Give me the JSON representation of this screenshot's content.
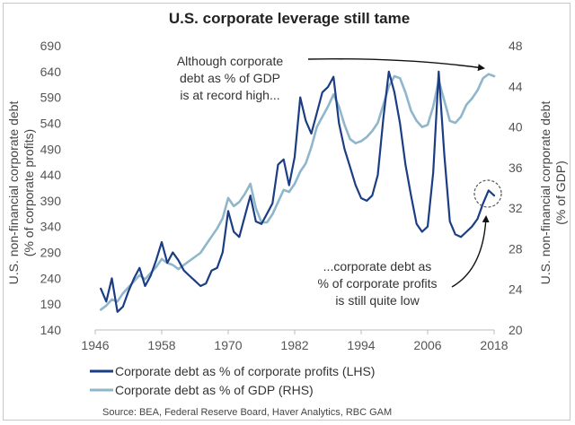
{
  "chart_data": {
    "type": "line",
    "title": "U.S. corporate leverage still tame",
    "ylabel_left": "U.S. non-financial corporate debt (% of corporate profits)",
    "ylabel_left_lines": [
      "U.S. non-financial corporate debt",
      "(% of corporate profits)"
    ],
    "ylabel_right": "U.S. non-financial corporate debt (% of GDP)",
    "ylabel_right_lines": [
      "U.S. non-financial corporate debt",
      "(% of GDP)"
    ],
    "x_ticks": [
      "1946",
      "1958",
      "1970",
      "1982",
      "1994",
      "2006",
      "2018"
    ],
    "x_range": [
      1946,
      2018
    ],
    "y_left_ticks": [
      "140",
      "190",
      "240",
      "290",
      "340",
      "390",
      "440",
      "490",
      "540",
      "590",
      "640",
      "690"
    ],
    "y_left_range": [
      140,
      690
    ],
    "y_right_ticks": [
      "20",
      "24",
      "28",
      "32",
      "36",
      "40",
      "44",
      "48"
    ],
    "y_right_range": [
      20,
      48
    ],
    "grid": false,
    "legend_position": "bottom",
    "series": [
      {
        "name": "Corporate debt as % of corporate profits (LHS)",
        "axis": "left",
        "color": "#1b3d84",
        "x": [
          1947,
          1948,
          1949,
          1950,
          1951,
          1952,
          1953,
          1954,
          1955,
          1956,
          1957,
          1958,
          1959,
          1960,
          1961,
          1962,
          1963,
          1964,
          1965,
          1966,
          1967,
          1968,
          1969,
          1970,
          1971,
          1972,
          1973,
          1974,
          1975,
          1976,
          1977,
          1978,
          1979,
          1980,
          1981,
          1982,
          1983,
          1984,
          1985,
          1986,
          1987,
          1988,
          1989,
          1990,
          1991,
          1992,
          1993,
          1994,
          1995,
          1996,
          1997,
          1998,
          1999,
          2000,
          2001,
          2002,
          2003,
          2004,
          2005,
          2006,
          2007,
          2008,
          2009,
          2010,
          2011,
          2012,
          2013,
          2014,
          2015,
          2016,
          2017,
          2018
        ],
        "values": [
          220,
          195,
          240,
          175,
          185,
          215,
          240,
          260,
          225,
          245,
          275,
          310,
          270,
          290,
          275,
          255,
          245,
          235,
          225,
          230,
          255,
          260,
          290,
          370,
          330,
          320,
          360,
          400,
          350,
          345,
          365,
          385,
          460,
          470,
          420,
          475,
          590,
          545,
          520,
          560,
          600,
          610,
          630,
          540,
          490,
          455,
          420,
          395,
          390,
          400,
          440,
          550,
          640,
          600,
          540,
          460,
          400,
          345,
          330,
          340,
          445,
          640,
          480,
          350,
          325,
          320,
          330,
          340,
          355,
          385,
          410,
          400
        ]
      },
      {
        "name": "Corporate debt as % of GDP (RHS)",
        "axis": "right",
        "color": "#8fb6cb",
        "x": [
          1947,
          1948,
          1949,
          1950,
          1951,
          1952,
          1953,
          1954,
          1955,
          1956,
          1957,
          1958,
          1959,
          1960,
          1961,
          1962,
          1963,
          1964,
          1965,
          1966,
          1967,
          1968,
          1969,
          1970,
          1971,
          1972,
          1973,
          1974,
          1975,
          1976,
          1977,
          1978,
          1979,
          1980,
          1981,
          1982,
          1983,
          1984,
          1985,
          1986,
          1987,
          1988,
          1989,
          1990,
          1991,
          1992,
          1993,
          1994,
          1995,
          1996,
          1997,
          1998,
          1999,
          2000,
          2001,
          2002,
          2003,
          2004,
          2005,
          2006,
          2007,
          2008,
          2009,
          2010,
          2011,
          2012,
          2013,
          2014,
          2015,
          2016,
          2017,
          2018
        ],
        "values": [
          22.0,
          22.4,
          23.0,
          22.8,
          23.6,
          24.2,
          24.8,
          25.4,
          25.0,
          25.6,
          26.2,
          27.0,
          26.6,
          26.4,
          26.0,
          26.4,
          26.8,
          27.2,
          27.6,
          28.4,
          29.2,
          30.0,
          31.0,
          33.0,
          32.2,
          32.6,
          33.4,
          34.4,
          32.0,
          30.6,
          30.6,
          31.4,
          32.6,
          33.8,
          33.6,
          34.4,
          35.6,
          36.4,
          38.0,
          40.0,
          41.0,
          42.0,
          43.2,
          42.0,
          40.2,
          38.8,
          38.4,
          38.6,
          39.0,
          39.6,
          40.4,
          42.2,
          44.0,
          45.0,
          44.8,
          43.4,
          41.6,
          40.6,
          40.0,
          40.2,
          42.0,
          44.6,
          42.6,
          40.6,
          40.4,
          41.0,
          42.2,
          42.8,
          43.6,
          44.8,
          45.2,
          45.0
        ]
      }
    ],
    "annotations": [
      {
        "id": "gdp-note",
        "lines": [
          "Although corporate",
          "debt as % of GDP",
          "is at record high..."
        ]
      },
      {
        "id": "profits-note",
        "lines": [
          "...corporate debt as",
          "% of corporate profits",
          "is still quite low"
        ]
      }
    ],
    "source": "Source: BEA, Federal Reserve Board, Haver Analytics, RBC GAM"
  }
}
